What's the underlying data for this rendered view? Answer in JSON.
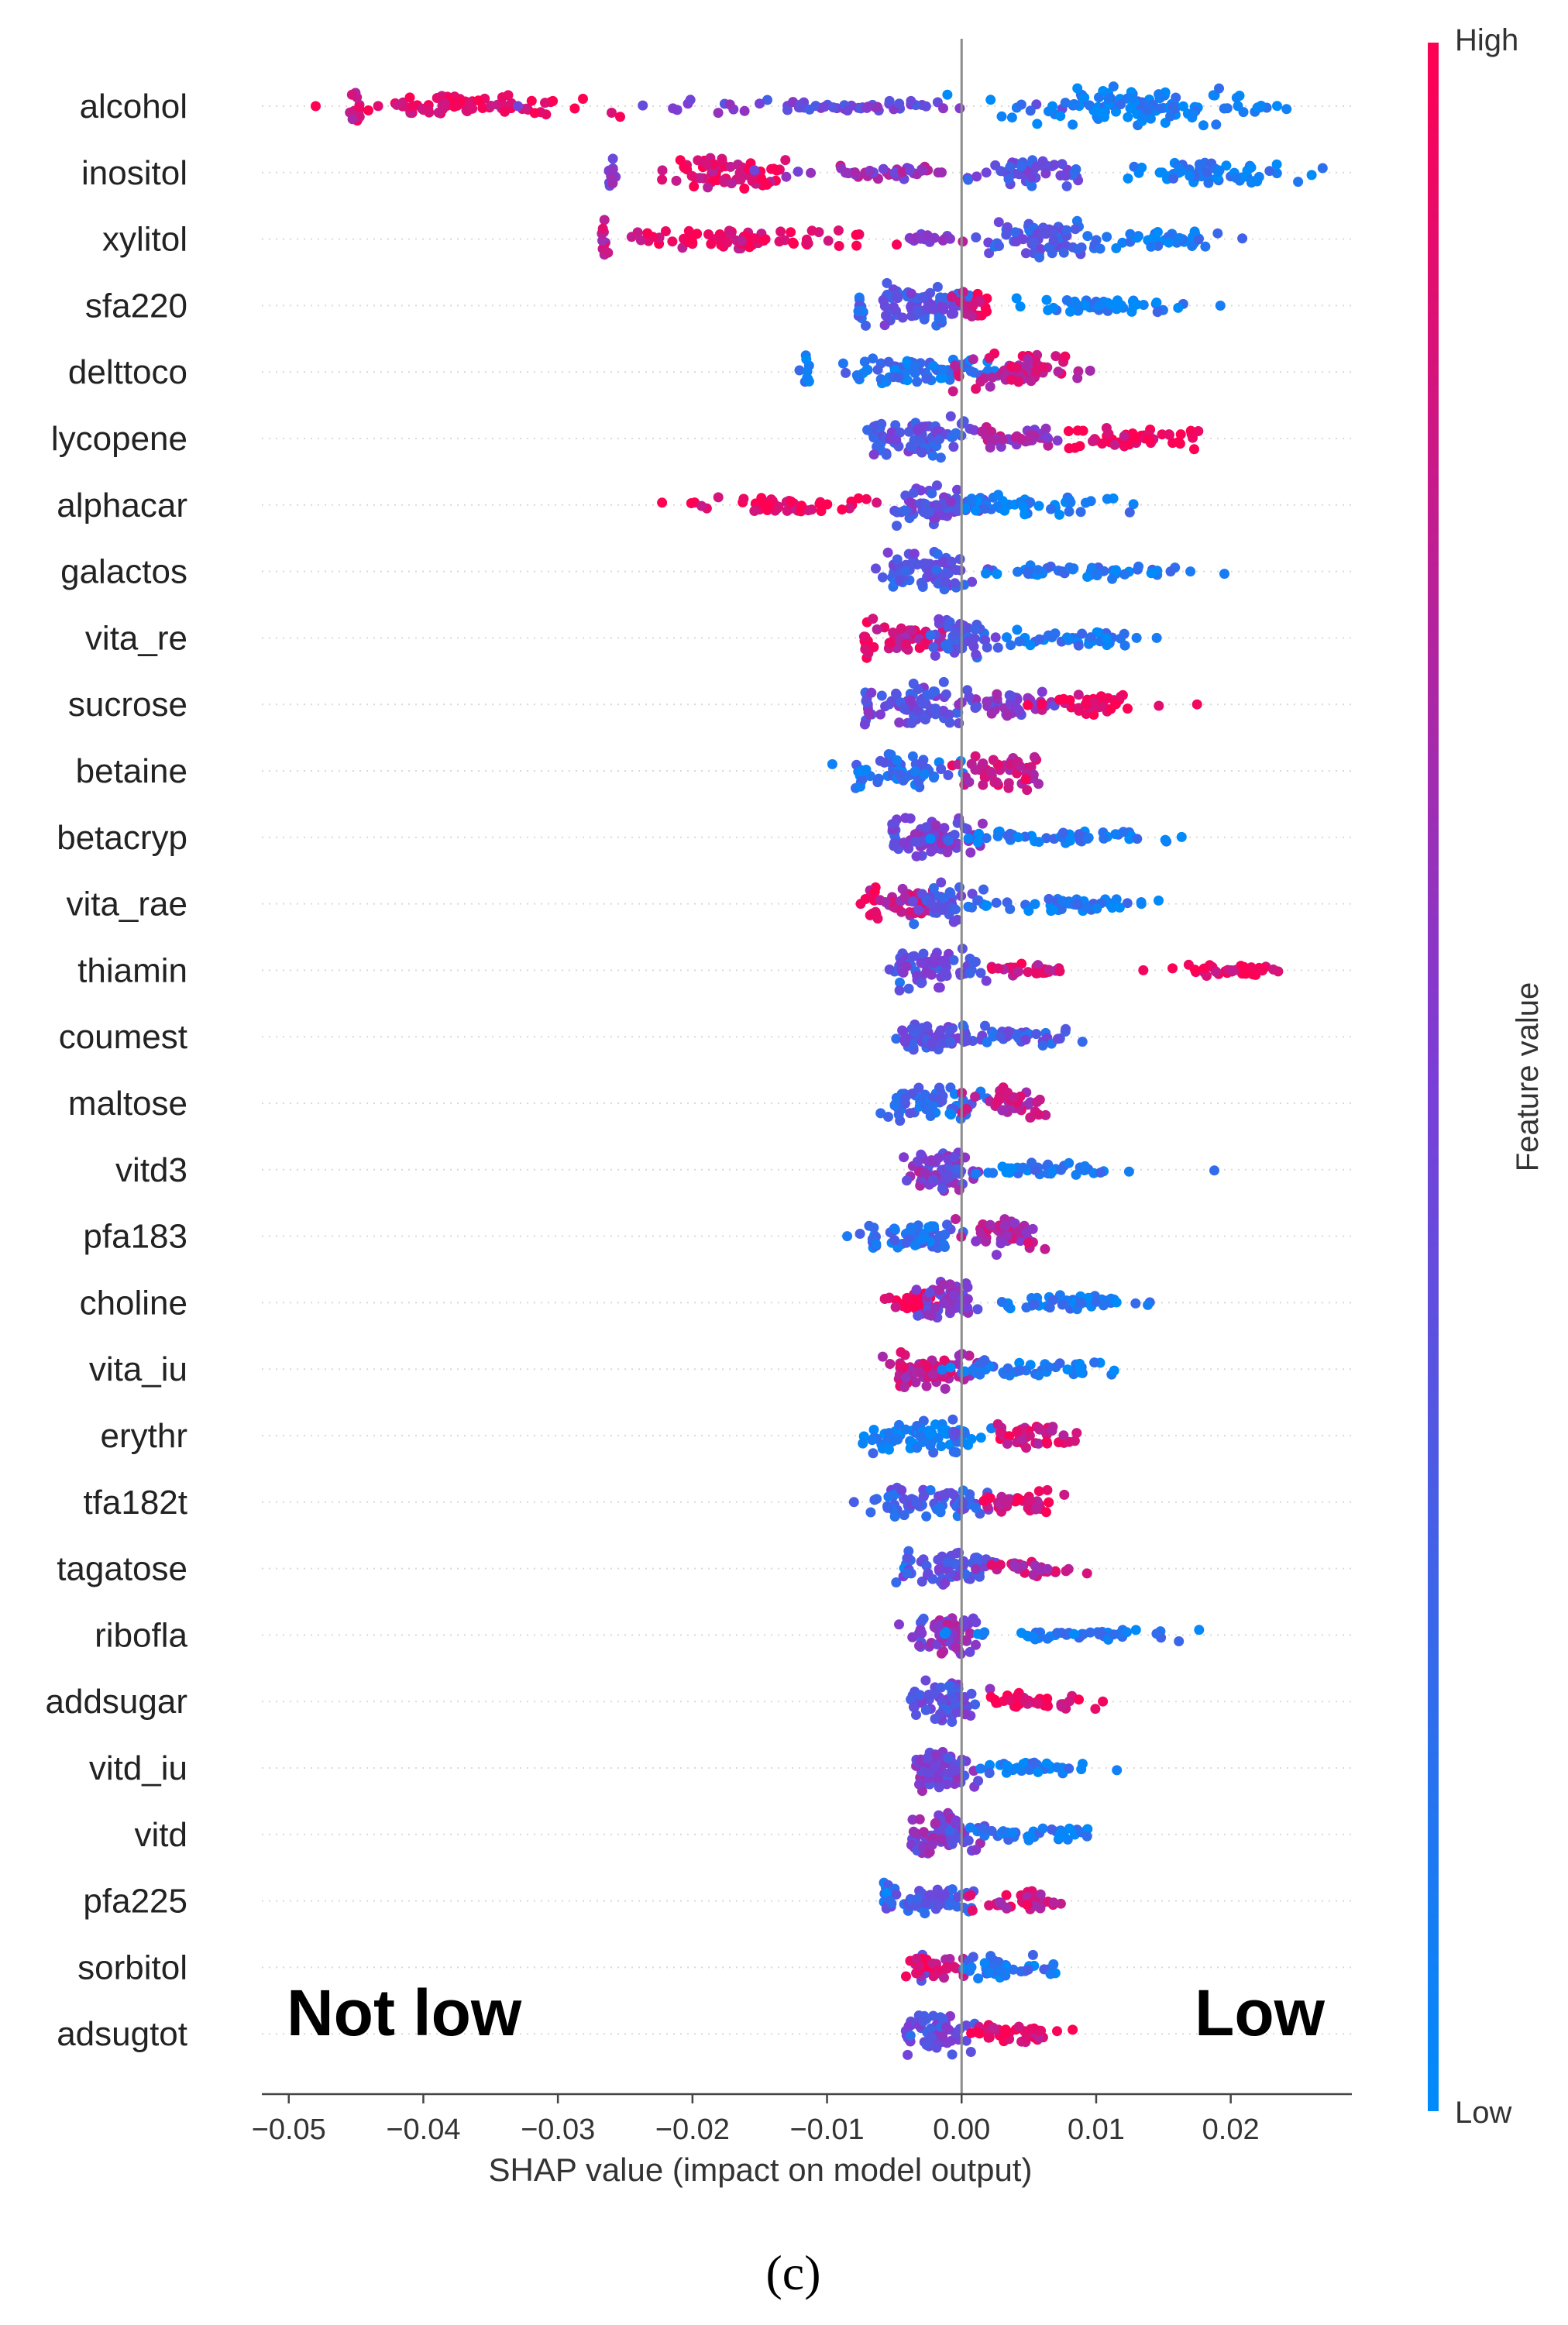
{
  "chart_data": {
    "type": "scatter",
    "subtype": "shap-beeswarm",
    "xlabel": "SHAP value (impact on model output)",
    "xlim": [
      -0.052,
      0.029
    ],
    "xticks": [
      -0.05,
      -0.04,
      -0.03,
      -0.02,
      -0.01,
      0.0,
      0.01,
      0.02
    ],
    "xtick_labels": [
      "−0.05",
      "−0.04",
      "−0.03",
      "−0.02",
      "−0.01",
      "0.00",
      "0.01",
      "0.02"
    ],
    "zero_line": 0.0,
    "grid": false,
    "colorbar": {
      "title": "Feature value",
      "high_label": "High",
      "low_label": "Low",
      "high_color": "#ff0052",
      "mid_color": "#7b3ed6",
      "low_color": "#008bfb"
    },
    "annotations": {
      "left": "Not low",
      "right": "Low"
    },
    "caption": "(c)",
    "features": [
      {
        "name": "alcohol",
        "clusters": [
          {
            "c": -0.045,
            "w": 0.0004,
            "h": 1.0,
            "n": 14,
            "col": 0.85
          },
          {
            "c": -0.037,
            "w": 0.008,
            "h": 0.55,
            "n": 70,
            "col": 0.95
          },
          {
            "c": -0.01,
            "w": 0.012,
            "h": 0.3,
            "n": 60,
            "col": 0.45
          },
          {
            "c": 0.012,
            "w": 0.007,
            "h": 1.0,
            "n": 110,
            "col": 0.08
          },
          {
            "c": 0.022,
            "w": 0.002,
            "h": 0.25,
            "n": 10,
            "col": 0.05
          }
        ],
        "outliers": [
          [
            -0.048,
            1.0
          ]
        ]
      },
      {
        "name": "inositol",
        "clusters": [
          {
            "c": -0.026,
            "w": 0.0003,
            "h": 1.0,
            "n": 12,
            "col": 0.55
          },
          {
            "c": -0.018,
            "w": 0.005,
            "h": 0.85,
            "n": 70,
            "col": 0.9
          },
          {
            "c": -0.006,
            "w": 0.006,
            "h": 0.35,
            "n": 40,
            "col": 0.6
          },
          {
            "c": 0.005,
            "w": 0.004,
            "h": 0.7,
            "n": 50,
            "col": 0.35
          },
          {
            "c": 0.017,
            "w": 0.007,
            "h": 0.55,
            "n": 60,
            "col": 0.08
          }
        ],
        "outliers": []
      },
      {
        "name": "xylitol",
        "clusters": [
          {
            "c": -0.0265,
            "w": 0.0003,
            "h": 1.0,
            "n": 12,
            "col": 0.75
          },
          {
            "c": -0.017,
            "w": 0.008,
            "h": 0.5,
            "n": 70,
            "col": 0.92
          },
          {
            "c": -0.002,
            "w": 0.003,
            "h": 0.25,
            "n": 20,
            "col": 0.6
          },
          {
            "c": 0.006,
            "w": 0.004,
            "h": 1.0,
            "n": 70,
            "col": 0.3
          },
          {
            "c": 0.015,
            "w": 0.005,
            "h": 0.45,
            "n": 40,
            "col": 0.1
          }
        ],
        "outliers": []
      },
      {
        "name": "sfa220",
        "clusters": [
          {
            "c": -0.0075,
            "w": 0.0003,
            "h": 1.0,
            "n": 10,
            "col": 0.2
          },
          {
            "c": -0.003,
            "w": 0.003,
            "h": 1.0,
            "n": 80,
            "col": 0.35
          },
          {
            "c": 0.001,
            "w": 0.001,
            "h": 0.7,
            "n": 20,
            "col": 0.9
          },
          {
            "c": 0.011,
            "w": 0.006,
            "h": 0.35,
            "n": 50,
            "col": 0.08
          }
        ],
        "outliers": []
      },
      {
        "name": "delttoco",
        "clusters": [
          {
            "c": -0.0115,
            "w": 0.0003,
            "h": 1.0,
            "n": 10,
            "col": 0.08
          },
          {
            "c": -0.003,
            "w": 0.006,
            "h": 0.7,
            "n": 80,
            "col": 0.15
          },
          {
            "c": 0.005,
            "w": 0.004,
            "h": 0.9,
            "n": 60,
            "col": 0.8
          }
        ],
        "outliers": []
      },
      {
        "name": "lycopene",
        "clusters": [
          {
            "c": -0.006,
            "w": 0.0004,
            "h": 1.0,
            "n": 12,
            "col": 0.3
          },
          {
            "c": -0.003,
            "w": 0.003,
            "h": 1.0,
            "n": 70,
            "col": 0.35
          },
          {
            "c": 0.004,
            "w": 0.003,
            "h": 0.55,
            "n": 40,
            "col": 0.65
          },
          {
            "c": 0.013,
            "w": 0.005,
            "h": 0.5,
            "n": 50,
            "col": 0.95
          }
        ],
        "outliers": []
      },
      {
        "name": "alphacar",
        "clusters": [
          {
            "c": -0.014,
            "w": 0.005,
            "h": 0.35,
            "n": 50,
            "col": 0.95
          },
          {
            "c": -0.002,
            "w": 0.003,
            "h": 1.0,
            "n": 70,
            "col": 0.4
          },
          {
            "c": 0.006,
            "w": 0.006,
            "h": 0.5,
            "n": 50,
            "col": 0.1
          }
        ],
        "outliers": []
      },
      {
        "name": "galactos",
        "clusters": [
          {
            "c": -0.005,
            "w": 0.0003,
            "h": 1.0,
            "n": 10,
            "col": 0.3
          },
          {
            "c": -0.002,
            "w": 0.003,
            "h": 1.0,
            "n": 70,
            "col": 0.35
          },
          {
            "c": 0.009,
            "w": 0.007,
            "h": 0.35,
            "n": 50,
            "col": 0.12
          }
        ],
        "outliers": [
          [
            0.017,
            0.1
          ]
        ]
      },
      {
        "name": "vita_re",
        "clusters": [
          {
            "c": -0.007,
            "w": 0.0003,
            "h": 1.0,
            "n": 10,
            "col": 0.95
          },
          {
            "c": -0.004,
            "w": 0.003,
            "h": 0.7,
            "n": 50,
            "col": 0.8
          },
          {
            "c": 0.0,
            "w": 0.002,
            "h": 1.0,
            "n": 50,
            "col": 0.3
          },
          {
            "c": 0.008,
            "w": 0.004,
            "h": 0.45,
            "n": 40,
            "col": 0.1
          }
        ],
        "outliers": [
          [
            0.013,
            0.1
          ],
          [
            0.0145,
            0.1
          ]
        ]
      },
      {
        "name": "sucrose",
        "clusters": [
          {
            "c": -0.007,
            "w": 0.0003,
            "h": 1.0,
            "n": 10,
            "col": 0.4
          },
          {
            "c": -0.003,
            "w": 0.003,
            "h": 1.0,
            "n": 70,
            "col": 0.4
          },
          {
            "c": 0.004,
            "w": 0.003,
            "h": 0.55,
            "n": 40,
            "col": 0.5
          },
          {
            "c": 0.01,
            "w": 0.004,
            "h": 0.5,
            "n": 40,
            "col": 0.95
          }
        ],
        "outliers": [
          [
            0.0175,
            0.95
          ]
        ]
      },
      {
        "name": "betaine",
        "clusters": [
          {
            "c": -0.0075,
            "w": 0.0003,
            "h": 1.0,
            "n": 10,
            "col": 0.15
          },
          {
            "c": -0.004,
            "w": 0.003,
            "h": 0.8,
            "n": 60,
            "col": 0.2
          },
          {
            "c": 0.003,
            "w": 0.003,
            "h": 0.9,
            "n": 50,
            "col": 0.8
          }
        ],
        "outliers": []
      },
      {
        "name": "betacryp",
        "clusters": [
          {
            "c": -0.005,
            "w": 0.0003,
            "h": 1.0,
            "n": 10,
            "col": 0.4
          },
          {
            "c": -0.002,
            "w": 0.003,
            "h": 1.0,
            "n": 70,
            "col": 0.5
          },
          {
            "c": 0.007,
            "w": 0.007,
            "h": 0.35,
            "n": 50,
            "col": 0.1
          }
        ],
        "outliers": []
      },
      {
        "name": "vita_rae",
        "clusters": [
          {
            "c": -0.0065,
            "w": 0.0004,
            "h": 1.0,
            "n": 10,
            "col": 0.9
          },
          {
            "c": -0.004,
            "w": 0.002,
            "h": 0.8,
            "n": 40,
            "col": 0.75
          },
          {
            "c": -0.001,
            "w": 0.002,
            "h": 1.0,
            "n": 40,
            "col": 0.35
          },
          {
            "c": 0.007,
            "w": 0.006,
            "h": 0.35,
            "n": 50,
            "col": 0.1
          }
        ],
        "outliers": [
          [
            -0.0075,
            0.95
          ]
        ]
      },
      {
        "name": "thiamin",
        "clusters": [
          {
            "c": -0.0045,
            "w": 0.0003,
            "h": 1.0,
            "n": 10,
            "col": 0.3
          },
          {
            "c": -0.002,
            "w": 0.003,
            "h": 1.0,
            "n": 70,
            "col": 0.4
          },
          {
            "c": 0.005,
            "w": 0.003,
            "h": 0.3,
            "n": 30,
            "col": 0.85
          },
          {
            "c": 0.02,
            "w": 0.004,
            "h": 0.3,
            "n": 40,
            "col": 0.95
          }
        ],
        "outliers": [
          [
            0.0135,
            0.95
          ]
        ]
      },
      {
        "name": "coumest",
        "clusters": [
          {
            "c": -0.0035,
            "w": 0.0003,
            "h": 1.0,
            "n": 10,
            "col": 0.35
          },
          {
            "c": -0.002,
            "w": 0.003,
            "h": 0.7,
            "n": 50,
            "col": 0.35
          },
          {
            "c": 0.004,
            "w": 0.003,
            "h": 0.5,
            "n": 40,
            "col": 0.3
          }
        ],
        "outliers": []
      },
      {
        "name": "maltose",
        "clusters": [
          {
            "c": -0.0045,
            "w": 0.0003,
            "h": 1.0,
            "n": 10,
            "col": 0.2
          },
          {
            "c": -0.002,
            "w": 0.003,
            "h": 0.8,
            "n": 60,
            "col": 0.2
          },
          {
            "c": 0.004,
            "w": 0.003,
            "h": 0.8,
            "n": 40,
            "col": 0.75
          }
        ],
        "outliers": []
      },
      {
        "name": "vitd3",
        "clusters": [
          {
            "c": -0.003,
            "w": 0.0003,
            "h": 1.0,
            "n": 10,
            "col": 0.6
          },
          {
            "c": -0.0015,
            "w": 0.002,
            "h": 1.0,
            "n": 60,
            "col": 0.5
          },
          {
            "c": 0.007,
            "w": 0.005,
            "h": 0.35,
            "n": 40,
            "col": 0.1
          }
        ],
        "outliers": []
      },
      {
        "name": "pfa183",
        "clusters": [
          {
            "c": -0.0065,
            "w": 0.0003,
            "h": 1.0,
            "n": 10,
            "col": 0.15
          },
          {
            "c": -0.003,
            "w": 0.003,
            "h": 0.6,
            "n": 50,
            "col": 0.2
          },
          {
            "c": 0.003,
            "w": 0.003,
            "h": 0.9,
            "n": 50,
            "col": 0.7
          }
        ],
        "outliers": [
          [
            -0.0085,
            0.1
          ]
        ]
      },
      {
        "name": "choline",
        "clusters": [
          {
            "c": -0.004,
            "w": 0.002,
            "h": 0.5,
            "n": 30,
            "col": 0.95
          },
          {
            "c": -0.001,
            "w": 0.002,
            "h": 1.0,
            "n": 50,
            "col": 0.5
          },
          {
            "c": 0.008,
            "w": 0.005,
            "h": 0.35,
            "n": 50,
            "col": 0.1
          }
        ],
        "outliers": []
      },
      {
        "name": "vita_iu",
        "clusters": [
          {
            "c": -0.0045,
            "w": 0.0003,
            "h": 1.0,
            "n": 10,
            "col": 0.9
          },
          {
            "c": -0.002,
            "w": 0.003,
            "h": 1.0,
            "n": 60,
            "col": 0.75
          },
          {
            "c": 0.005,
            "w": 0.005,
            "h": 0.45,
            "n": 50,
            "col": 0.12
          }
        ],
        "outliers": []
      },
      {
        "name": "erythr",
        "clusters": [
          {
            "c": -0.003,
            "w": 0.004,
            "h": 0.8,
            "n": 70,
            "col": 0.08
          },
          {
            "c": -0.0005,
            "w": 0.0003,
            "h": 1.0,
            "n": 10,
            "col": 0.3
          },
          {
            "c": 0.005,
            "w": 0.003,
            "h": 0.6,
            "n": 40,
            "col": 0.85
          }
        ],
        "outliers": []
      },
      {
        "name": "tfa182t",
        "clusters": [
          {
            "c": -0.005,
            "w": 0.0003,
            "h": 1.0,
            "n": 10,
            "col": 0.3
          },
          {
            "c": -0.002,
            "w": 0.004,
            "h": 0.7,
            "n": 60,
            "col": 0.3
          },
          {
            "c": 0.004,
            "w": 0.003,
            "h": 0.6,
            "n": 40,
            "col": 0.85
          }
        ],
        "outliers": [
          [
            -0.008,
            0.3
          ]
        ]
      },
      {
        "name": "tagatose",
        "clusters": [
          {
            "c": -0.004,
            "w": 0.0003,
            "h": 1.0,
            "n": 10,
            "col": 0.2
          },
          {
            "c": -0.001,
            "w": 0.003,
            "h": 0.8,
            "n": 60,
            "col": 0.35
          },
          {
            "c": 0.005,
            "w": 0.003,
            "h": 0.4,
            "n": 30,
            "col": 0.75
          }
        ],
        "outliers": []
      },
      {
        "name": "ribofla",
        "clusters": [
          {
            "c": -0.003,
            "w": 0.0003,
            "h": 1.0,
            "n": 10,
            "col": 0.35
          },
          {
            "c": -0.001,
            "w": 0.002,
            "h": 1.0,
            "n": 60,
            "col": 0.6
          },
          {
            "c": 0.008,
            "w": 0.007,
            "h": 0.3,
            "n": 50,
            "col": 0.12
          }
        ],
        "outliers": []
      },
      {
        "name": "addsugar",
        "clusters": [
          {
            "c": -0.0035,
            "w": 0.0003,
            "h": 1.0,
            "n": 10,
            "col": 0.3
          },
          {
            "c": -0.001,
            "w": 0.002,
            "h": 1.0,
            "n": 60,
            "col": 0.4
          },
          {
            "c": 0.006,
            "w": 0.004,
            "h": 0.45,
            "n": 40,
            "col": 0.92
          }
        ],
        "outliers": [
          [
            0.0105,
            0.95
          ]
        ]
      },
      {
        "name": "vitd_iu",
        "clusters": [
          {
            "c": -0.003,
            "w": 0.0003,
            "h": 1.0,
            "n": 10,
            "col": 0.5
          },
          {
            "c": -0.0015,
            "w": 0.002,
            "h": 1.0,
            "n": 60,
            "col": 0.45
          },
          {
            "c": 0.005,
            "w": 0.004,
            "h": 0.3,
            "n": 40,
            "col": 0.1
          }
        ],
        "outliers": []
      },
      {
        "name": "vitd",
        "clusters": [
          {
            "c": -0.0035,
            "w": 0.0003,
            "h": 1.0,
            "n": 10,
            "col": 0.5
          },
          {
            "c": -0.0015,
            "w": 0.002,
            "h": 1.0,
            "n": 60,
            "col": 0.5
          },
          {
            "c": 0.005,
            "w": 0.004,
            "h": 0.3,
            "n": 40,
            "col": 0.1
          }
        ],
        "outliers": []
      },
      {
        "name": "pfa225",
        "clusters": [
          {
            "c": -0.0055,
            "w": 0.0003,
            "h": 1.0,
            "n": 10,
            "col": 0.15
          },
          {
            "c": -0.002,
            "w": 0.003,
            "h": 0.7,
            "n": 60,
            "col": 0.3
          },
          {
            "c": 0.004,
            "w": 0.003,
            "h": 0.55,
            "n": 40,
            "col": 0.8
          }
        ],
        "outliers": []
      },
      {
        "name": "sorbitol",
        "clusters": [
          {
            "c": -0.003,
            "w": 0.0003,
            "h": 1.0,
            "n": 10,
            "col": 0.5
          },
          {
            "c": -0.002,
            "w": 0.002,
            "h": 0.6,
            "n": 40,
            "col": 0.85
          },
          {
            "c": 0.003,
            "w": 0.003,
            "h": 0.55,
            "n": 40,
            "col": 0.15
          }
        ],
        "outliers": []
      },
      {
        "name": "adsugtot",
        "clusters": [
          {
            "c": -0.004,
            "w": 0.0003,
            "h": 1.0,
            "n": 10,
            "col": 0.35
          },
          {
            "c": -0.0015,
            "w": 0.002,
            "h": 1.0,
            "n": 50,
            "col": 0.4
          },
          {
            "c": 0.004,
            "w": 0.003,
            "h": 0.6,
            "n": 40,
            "col": 0.92
          }
        ],
        "outliers": []
      }
    ]
  }
}
